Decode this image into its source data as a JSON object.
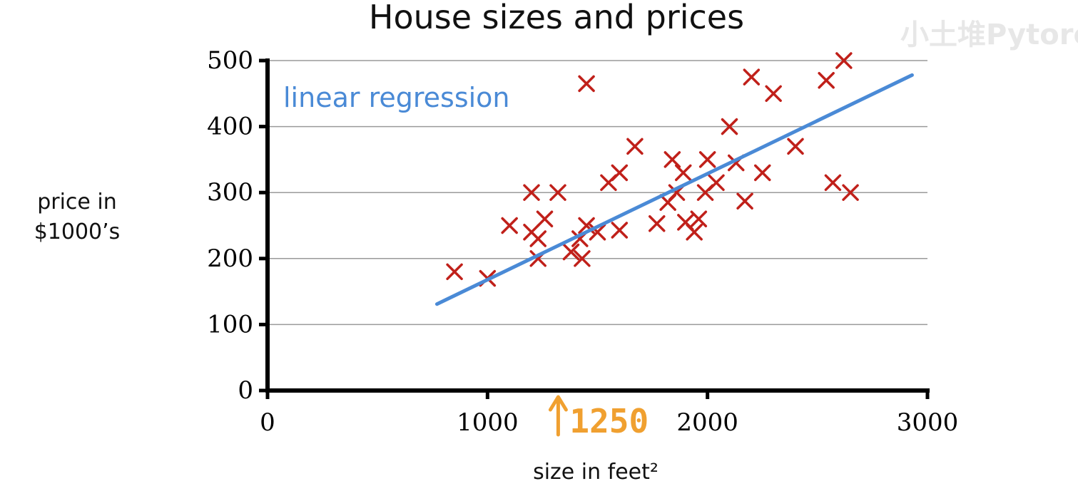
{
  "chart_data": {
    "type": "scatter",
    "title": "House sizes and prices",
    "xlabel": "size in feet²",
    "ylabel": [
      "price in",
      "$1000’s"
    ],
    "xlim": [
      0,
      3000
    ],
    "ylim": [
      0,
      500
    ],
    "x_ticks": [
      0,
      1000,
      2000,
      3000
    ],
    "y_ticks": [
      0,
      100,
      200,
      300,
      400,
      500
    ],
    "grid": "horizontal",
    "colors": {
      "points": "#c0201a",
      "line": "#4a8ad6",
      "highlight": "#f0a030"
    },
    "points": [
      [
        850,
        180
      ],
      [
        1000,
        170
      ],
      [
        1100,
        250
      ],
      [
        1200,
        300
      ],
      [
        1200,
        240
      ],
      [
        1230,
        230
      ],
      [
        1230,
        200
      ],
      [
        1260,
        260
      ],
      [
        1320,
        300
      ],
      [
        1380,
        210
      ],
      [
        1420,
        230
      ],
      [
        1430,
        200
      ],
      [
        1450,
        250
      ],
      [
        1450,
        465
      ],
      [
        1500,
        240
      ],
      [
        1550,
        315
      ],
      [
        1600,
        330
      ],
      [
        1600,
        243
      ],
      [
        1670,
        370
      ],
      [
        1770,
        253
      ],
      [
        1820,
        285
      ],
      [
        1840,
        350
      ],
      [
        1860,
        300
      ],
      [
        1890,
        330
      ],
      [
        1900,
        255
      ],
      [
        1940,
        240
      ],
      [
        1960,
        260
      ],
      [
        1990,
        300
      ],
      [
        2000,
        350
      ],
      [
        2040,
        315
      ],
      [
        2100,
        400
      ],
      [
        2130,
        345
      ],
      [
        2170,
        287
      ],
      [
        2200,
        475
      ],
      [
        2250,
        330
      ],
      [
        2300,
        450
      ],
      [
        2400,
        370
      ],
      [
        2540,
        470
      ],
      [
        2570,
        315
      ],
      [
        2620,
        500
      ],
      [
        2650,
        300
      ]
    ],
    "regression": {
      "label": "linear regression",
      "x": [
        770,
        2930
      ],
      "y": [
        131,
        478
      ]
    },
    "annotation": {
      "x": 1250,
      "label": "1250"
    },
    "watermark": "小土堆Pytorch"
  }
}
